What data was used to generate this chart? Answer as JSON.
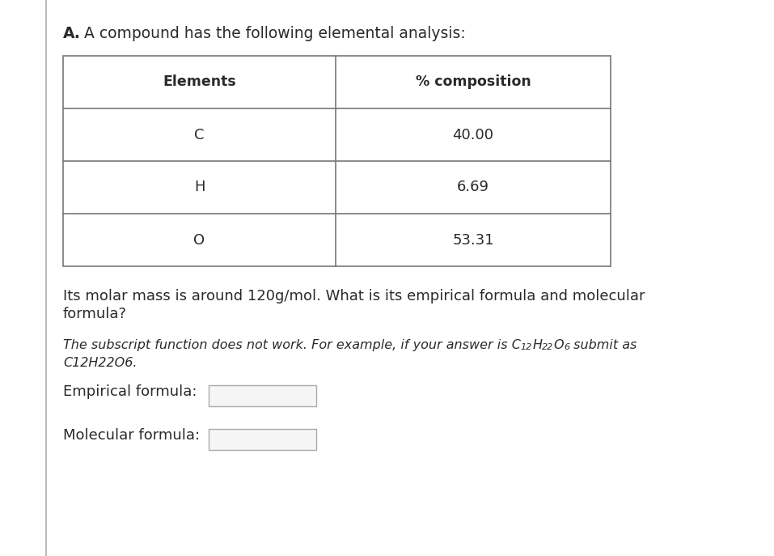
{
  "bg_color": "#ffffff",
  "text_color": "#2a2a2a",
  "table_border_color": "#777777",
  "input_box_color": "#f5f5f5",
  "input_box_border": "#aaaaaa",
  "title_bold": "A.",
  "title_rest": " A compound has the following elemental analysis:",
  "table_headers": [
    "Elements",
    "% composition"
  ],
  "table_rows": [
    [
      "C",
      "40.00"
    ],
    [
      "H",
      "6.69"
    ],
    [
      "O",
      "53.31"
    ]
  ],
  "paragraph1_line1": "Its molar mass is around 120g/mol. What is its empirical formula and molecular",
  "paragraph1_line2": "formula?",
  "italic_prefix": "The subscript function does not work. For example, if your answer is C",
  "italic_sub1": "12",
  "italic_H": "H",
  "italic_sub2": "22",
  "italic_O": "O",
  "italic_sub3": "6",
  "italic_suffix": " submit as",
  "italic_line2": "C12H22O6.",
  "label_empirical": "Empirical formula:",
  "label_molecular": "Molecular formula:",
  "font_size_title": 13.5,
  "font_size_body": 13,
  "font_size_table_header": 12.5,
  "font_size_table_data": 13,
  "font_size_italic": 11.5,
  "font_size_sub": 8,
  "font_size_label": 13
}
